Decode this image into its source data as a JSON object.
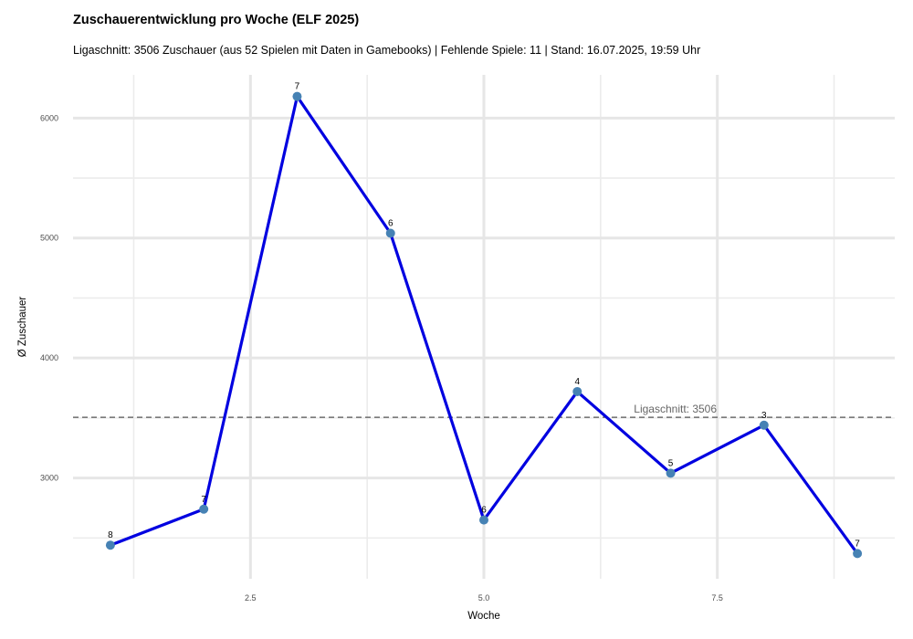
{
  "chart_data": {
    "type": "line",
    "title": "Zuschauerentwicklung pro Woche (ELF 2025)",
    "subtitle": "Ligaschnitt: 3506 Zuschauer (aus 52 Spielen mit Daten in Gamebooks) | Fehlende Spiele: 11 | Stand: 16.07.2025, 19:59 Uhr",
    "xlabel": "Woche",
    "ylabel": "Ø Zuschauer",
    "xlim": [
      0.6,
      9.4
    ],
    "ylim": [
      2160,
      6360
    ],
    "xticks": [
      2.5,
      5.0,
      7.5
    ],
    "xtick_labels": [
      "2.5",
      "5.0",
      "7.5"
    ],
    "yticks": [
      3000,
      4000,
      5000,
      6000
    ],
    "ytick_labels": [
      "3000",
      "4000",
      "5000",
      "6000"
    ],
    "grid": true,
    "reference_line": {
      "value": 3506,
      "label": "Ligaschnitt: 3506",
      "style": "dashed"
    },
    "line_color": "#0000e0",
    "point_color": "#4682b4",
    "series": [
      {
        "x": [
          1,
          2,
          3,
          4,
          5,
          6,
          7,
          8,
          9
        ],
        "values": [
          2440,
          2740,
          6180,
          5040,
          2650,
          3720,
          3040,
          3440,
          2370
        ],
        "labels": [
          "8",
          "7",
          "7",
          "6",
          "6",
          "4",
          "5",
          "3",
          "7"
        ]
      }
    ]
  }
}
